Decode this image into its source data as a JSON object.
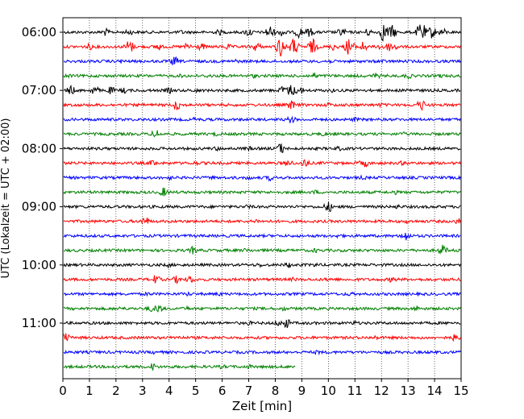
{
  "chart_data": {
    "type": "line",
    "title": "",
    "xlabel": "Zeit  [min]",
    "ylabel": "UTC (Lokalzeit = UTC + 02:00)",
    "xlim": [
      0,
      15
    ],
    "x_ticks": [
      "0",
      "1",
      "2",
      "3",
      "4",
      "5",
      "6",
      "7",
      "8",
      "9",
      "10",
      "11",
      "12",
      "13",
      "14",
      "15"
    ],
    "y_ticks": [
      "06:00",
      "07:00",
      "08:00",
      "09:00",
      "10:00",
      "11:00"
    ],
    "grid": "vertical dotted",
    "line_interval_minutes": 15,
    "colors": [
      "#000000",
      "#ff0000",
      "#0000ff",
      "#008000"
    ],
    "series": [
      {
        "start": "06:00",
        "color": "#000000",
        "end_min": 15,
        "events": [
          [
            1.6,
            5
          ],
          [
            2.5,
            4
          ],
          [
            4.5,
            3
          ],
          [
            5.9,
            4
          ],
          [
            7.0,
            6
          ],
          [
            7.8,
            9
          ],
          [
            8.3,
            6
          ],
          [
            8.9,
            7
          ],
          [
            9.3,
            6
          ],
          [
            10.5,
            6
          ],
          [
            11.5,
            5
          ],
          [
            12.1,
            12
          ],
          [
            12.4,
            9
          ],
          [
            13.5,
            13
          ],
          [
            13.9,
            8
          ],
          [
            14.3,
            5
          ]
        ]
      },
      {
        "start": "06:15",
        "color": "#ff0000",
        "end_min": 15,
        "events": [
          [
            1.0,
            4
          ],
          [
            2.5,
            9
          ],
          [
            3.6,
            5
          ],
          [
            4.7,
            5
          ],
          [
            5.2,
            5
          ],
          [
            6.2,
            4
          ],
          [
            7.3,
            6
          ],
          [
            8.2,
            13
          ],
          [
            8.7,
            11
          ],
          [
            9.4,
            10
          ],
          [
            10.2,
            5
          ],
          [
            10.8,
            12
          ],
          [
            11.3,
            7
          ],
          [
            12.0,
            5
          ],
          [
            12.5,
            5
          ],
          [
            12.3,
            6
          ]
        ]
      },
      {
        "start": "06:30",
        "color": "#0000ff",
        "end_min": 15,
        "events": [
          [
            4.2,
            6
          ],
          [
            2.2,
            3
          ],
          [
            6.5,
            3
          ],
          [
            10.0,
            3
          ],
          [
            12.0,
            3
          ]
        ]
      },
      {
        "start": "06:45",
        "color": "#008000",
        "end_min": 15,
        "events": [
          [
            0.2,
            3
          ],
          [
            4.5,
            3
          ],
          [
            5.5,
            3
          ],
          [
            7.2,
            3
          ],
          [
            9.5,
            4
          ],
          [
            11.8,
            4
          ],
          [
            13.0,
            4
          ],
          [
            14.2,
            3
          ]
        ]
      },
      {
        "start": "07:00",
        "color": "#000000",
        "end_min": 15,
        "events": [
          [
            0.3,
            6
          ],
          [
            1.2,
            6
          ],
          [
            1.8,
            5
          ],
          [
            2.3,
            4
          ],
          [
            4.0,
            4
          ],
          [
            5.0,
            3
          ],
          [
            8.3,
            6
          ],
          [
            8.6,
            8
          ],
          [
            8.9,
            6
          ],
          [
            10.1,
            3
          ],
          [
            13.0,
            3
          ]
        ]
      },
      {
        "start": "07:15",
        "color": "#ff0000",
        "end_min": 15,
        "events": [
          [
            4.3,
            7
          ],
          [
            8.6,
            6
          ],
          [
            10.0,
            3
          ],
          [
            12.0,
            3
          ],
          [
            13.5,
            7
          ]
        ]
      },
      {
        "start": "07:30",
        "color": "#0000ff",
        "end_min": 15,
        "events": [
          [
            8.6,
            5
          ],
          [
            5.0,
            3
          ],
          [
            11.0,
            3
          ]
        ]
      },
      {
        "start": "07:45",
        "color": "#008000",
        "end_min": 15,
        "events": [
          [
            3.5,
            6
          ],
          [
            5.8,
            3
          ],
          [
            9.8,
            3
          ],
          [
            12.8,
            3
          ]
        ]
      },
      {
        "start": "08:00",
        "color": "#000000",
        "end_min": 15,
        "events": [
          [
            5.8,
            3
          ],
          [
            7.0,
            3
          ],
          [
            8.2,
            7
          ],
          [
            10.4,
            3
          ]
        ]
      },
      {
        "start": "08:15",
        "color": "#ff0000",
        "end_min": 15,
        "events": [
          [
            3.4,
            4
          ],
          [
            5.0,
            3
          ],
          [
            8.5,
            5
          ],
          [
            9.1,
            6
          ],
          [
            11.2,
            3
          ],
          [
            11.4,
            5
          ],
          [
            12.8,
            3
          ]
        ]
      },
      {
        "start": "08:30",
        "color": "#0000ff",
        "end_min": 15,
        "events": [
          [
            4.0,
            3
          ],
          [
            5.6,
            3
          ],
          [
            7.0,
            3
          ],
          [
            7.8,
            4
          ],
          [
            11.3,
            3
          ]
        ]
      },
      {
        "start": "08:45",
        "color": "#008000",
        "end_min": 15,
        "events": [
          [
            3.8,
            6
          ],
          [
            9.5,
            3
          ],
          [
            12.5,
            3
          ]
        ]
      },
      {
        "start": "09:00",
        "color": "#000000",
        "end_min": 15,
        "events": [
          [
            7.0,
            3
          ],
          [
            10.0,
            7
          ],
          [
            12.6,
            3
          ]
        ]
      },
      {
        "start": "09:15",
        "color": "#ff0000",
        "end_min": 15,
        "events": [
          [
            3.1,
            6
          ],
          [
            7.3,
            3
          ],
          [
            13.0,
            3
          ],
          [
            14.9,
            4
          ]
        ]
      },
      {
        "start": "09:30",
        "color": "#0000ff",
        "end_min": 15,
        "events": [
          [
            10.4,
            3
          ],
          [
            12.9,
            7
          ]
        ]
      },
      {
        "start": "09:45",
        "color": "#008000",
        "end_min": 15,
        "events": [
          [
            4.9,
            5
          ],
          [
            6.9,
            3
          ],
          [
            9.5,
            3
          ],
          [
            14.3,
            7
          ]
        ]
      },
      {
        "start": "10:00",
        "color": "#000000",
        "end_min": 15,
        "events": [
          [
            4.0,
            3
          ],
          [
            7.4,
            3
          ],
          [
            8.5,
            4
          ],
          [
            9.5,
            3
          ]
        ]
      },
      {
        "start": "10:15",
        "color": "#ff0000",
        "end_min": 15,
        "events": [
          [
            3.5,
            6
          ],
          [
            4.3,
            5
          ],
          [
            4.8,
            5
          ],
          [
            8.7,
            3
          ],
          [
            12.4,
            4
          ],
          [
            10.0,
            3
          ]
        ]
      },
      {
        "start": "10:30",
        "color": "#0000ff",
        "end_min": 15,
        "events": [
          [
            3.2,
            3
          ],
          [
            4.7,
            3
          ],
          [
            5.9,
            3
          ],
          [
            10.8,
            3
          ]
        ]
      },
      {
        "start": "10:45",
        "color": "#008000",
        "end_min": 15,
        "events": [
          [
            2.2,
            3
          ],
          [
            3.3,
            4
          ],
          [
            3.6,
            6
          ],
          [
            4.7,
            3
          ],
          [
            8.3,
            3
          ],
          [
            13.3,
            4
          ]
        ]
      },
      {
        "start": "11:00",
        "color": "#000000",
        "end_min": 15,
        "events": [
          [
            7.0,
            3
          ],
          [
            8.1,
            4
          ],
          [
            8.4,
            7
          ],
          [
            11.0,
            3
          ]
        ]
      },
      {
        "start": "11:15",
        "color": "#ff0000",
        "end_min": 15,
        "events": [
          [
            0.1,
            6
          ],
          [
            4.3,
            3
          ],
          [
            11.8,
            3
          ],
          [
            14.8,
            5
          ]
        ]
      },
      {
        "start": "11:30",
        "color": "#0000ff",
        "end_min": 15,
        "events": [
          [
            3.5,
            3
          ],
          [
            9.6,
            3
          ]
        ]
      },
      {
        "start": "11:45",
        "color": "#008000",
        "end_min": 8.75,
        "events": [
          [
            2.0,
            3
          ],
          [
            3.4,
            5
          ],
          [
            6.0,
            3
          ],
          [
            7.0,
            3
          ]
        ]
      }
    ]
  }
}
